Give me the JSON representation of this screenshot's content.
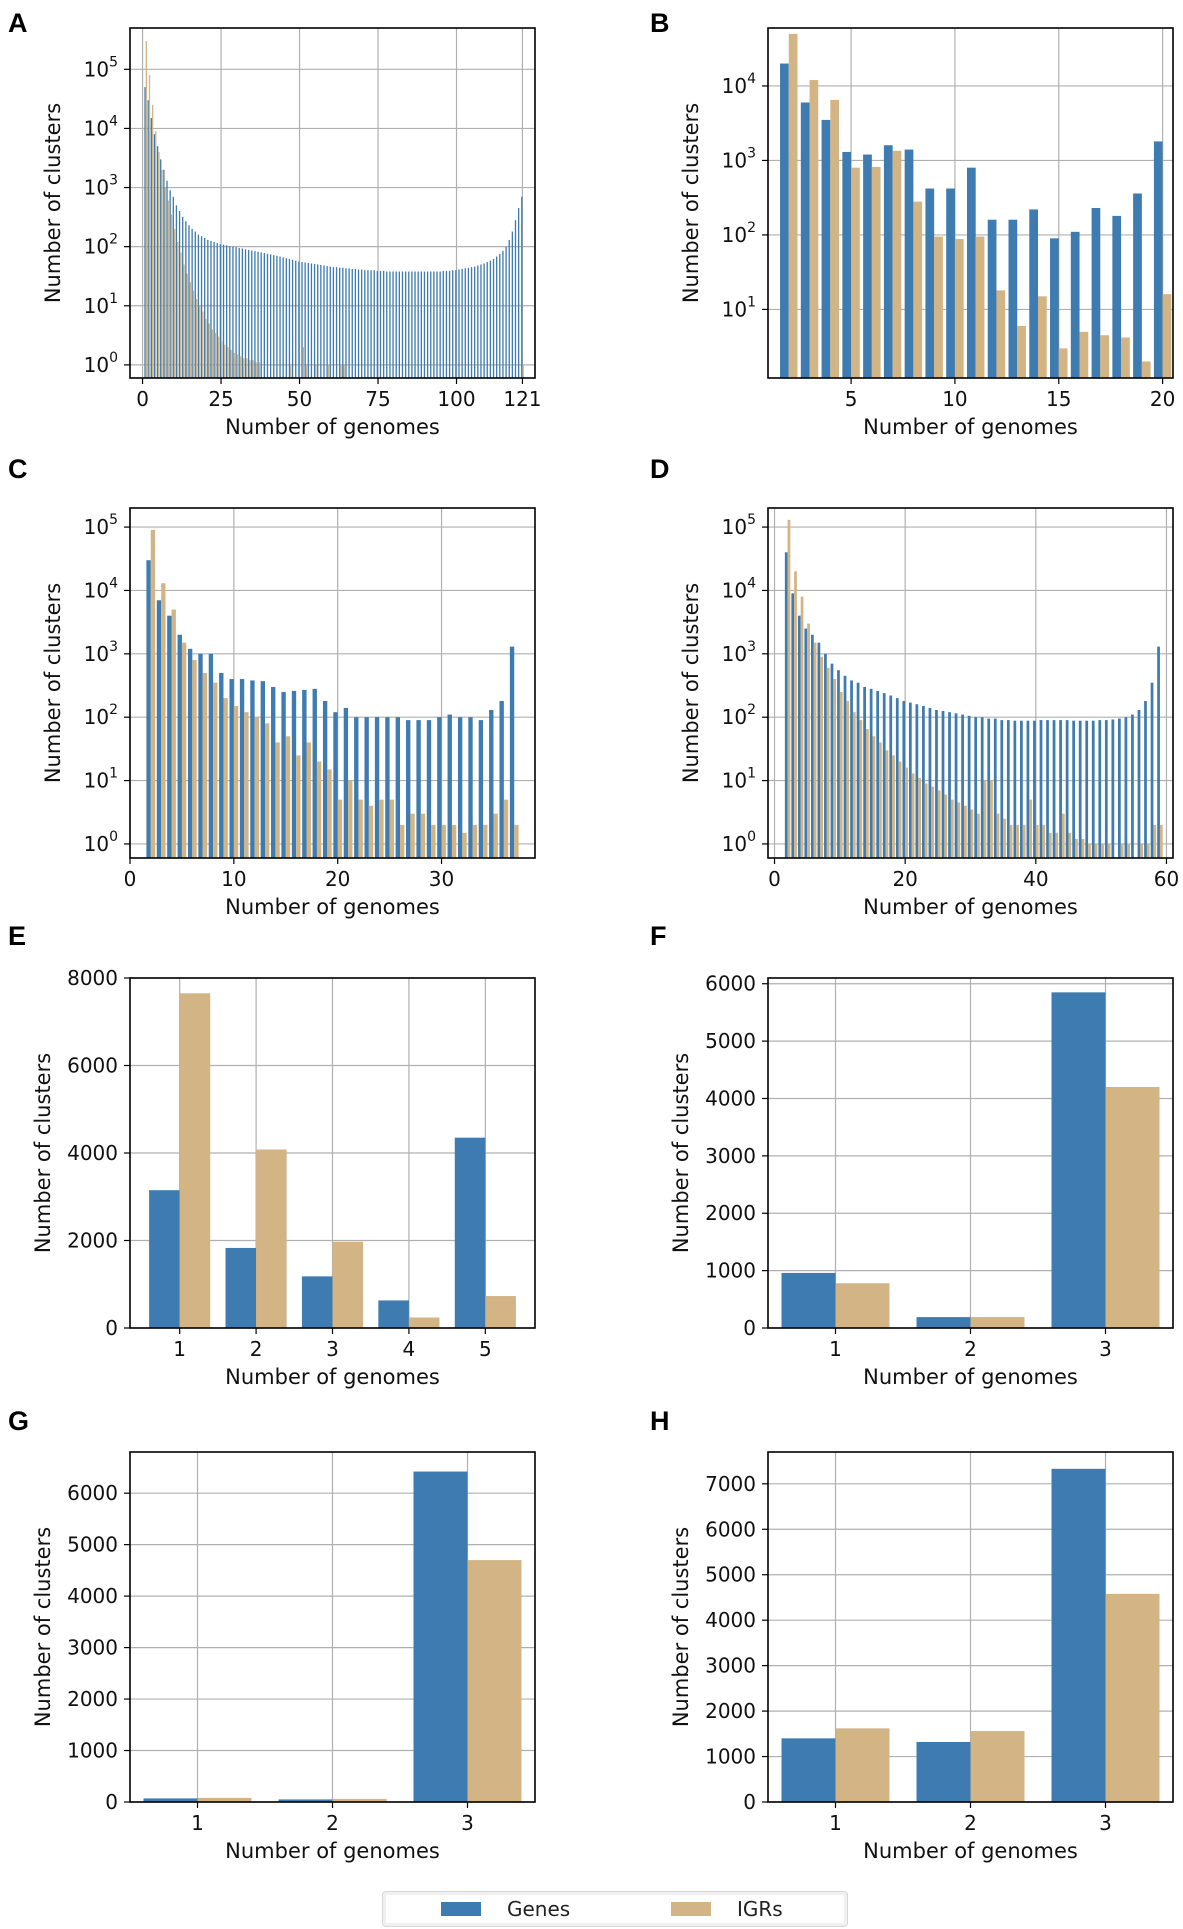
{
  "colors": {
    "genes": "#3e7bb0",
    "igrs": "#d2b485",
    "grid": "#b0b0b0",
    "axis": "#000000"
  },
  "legend": {
    "genes_label": "Genes",
    "igrs_label": "IGRs"
  },
  "chart_data": [
    {
      "panel": "A",
      "type": "bar",
      "scale": "log",
      "xlabel": "Number of genomes",
      "ylabel": "Number of clusters",
      "xlim": [
        -4,
        125
      ],
      "ylim": [
        0.6,
        500000
      ],
      "xticks": [
        0,
        25,
        50,
        75,
        100,
        121
      ],
      "xtick_labels": [
        "0",
        "25",
        "50",
        "75",
        "100",
        "121"
      ],
      "ytick_exps": [
        0,
        1,
        2,
        3,
        4,
        5
      ],
      "x": [
        1,
        2,
        3,
        4,
        5,
        6,
        7,
        8,
        9,
        10,
        11,
        12,
        13,
        14,
        15,
        16,
        17,
        18,
        19,
        20,
        21,
        22,
        23,
        24,
        25,
        26,
        27,
        28,
        29,
        30,
        31,
        32,
        33,
        34,
        35,
        36,
        37,
        38,
        39,
        40,
        41,
        42,
        43,
        44,
        45,
        46,
        47,
        48,
        49,
        50,
        51,
        52,
        53,
        54,
        55,
        56,
        57,
        58,
        59,
        60,
        61,
        62,
        63,
        64,
        65,
        66,
        67,
        68,
        69,
        70,
        71,
        72,
        73,
        74,
        75,
        76,
        77,
        78,
        79,
        80,
        81,
        82,
        83,
        84,
        85,
        86,
        87,
        88,
        89,
        90,
        91,
        92,
        93,
        94,
        95,
        96,
        97,
        98,
        99,
        100,
        101,
        102,
        103,
        104,
        105,
        106,
        107,
        108,
        109,
        110,
        111,
        112,
        113,
        114,
        115,
        116,
        117,
        118,
        119,
        120,
        121
      ],
      "series": [
        {
          "name": "Genes",
          "values": [
            50000,
            30000,
            15000,
            8000,
            5000,
            3000,
            2000,
            1300,
            900,
            700,
            500,
            400,
            320,
            270,
            230,
            200,
            180,
            160,
            150,
            140,
            130,
            125,
            120,
            115,
            110,
            108,
            105,
            102,
            100,
            98,
            95,
            93,
            90,
            88,
            86,
            84,
            82,
            80,
            78,
            76,
            74,
            72,
            70,
            68,
            66,
            64,
            62,
            60,
            58,
            56,
            55,
            54,
            53,
            52,
            51,
            50,
            49,
            48,
            47,
            46,
            45,
            45,
            44,
            44,
            43,
            43,
            42,
            42,
            41,
            41,
            40,
            40,
            40,
            40,
            39,
            39,
            39,
            38,
            38,
            38,
            38,
            38,
            38,
            38,
            38,
            38,
            38,
            38,
            38,
            38,
            38,
            38,
            38,
            38,
            38,
            39,
            39,
            39,
            40,
            40,
            41,
            42,
            43,
            44,
            45,
            46,
            48,
            50,
            52,
            55,
            58,
            62,
            68,
            75,
            85,
            100,
            130,
            180,
            280,
            450,
            700
          ]
        },
        {
          "name": "IGRs",
          "values": [
            300000,
            80000,
            25000,
            9000,
            4000,
            2000,
            1000,
            600,
            350,
            200,
            120,
            80,
            50,
            35,
            25,
            18,
            13,
            10,
            8,
            6,
            5,
            4,
            3.5,
            3,
            2.5,
            2.2,
            2,
            1.8,
            1.6,
            1.5,
            1.4,
            1.3,
            1.3,
            1.2,
            1.2,
            1.1,
            1.1,
            0,
            0,
            0,
            0,
            0,
            0,
            0,
            0,
            0,
            1,
            0,
            0,
            0,
            2,
            1,
            0,
            0,
            1,
            0,
            0,
            0,
            1,
            0,
            0,
            0,
            1,
            1,
            0,
            0,
            0,
            0,
            0,
            0,
            0,
            0,
            0,
            0,
            0,
            0,
            0,
            0,
            0,
            0,
            0,
            0,
            0,
            0,
            0,
            0,
            0,
            0,
            0,
            0,
            0,
            0,
            0,
            0,
            0,
            0,
            0,
            0,
            0,
            0,
            0,
            0,
            0,
            0,
            0,
            0,
            0,
            0,
            0,
            0,
            0,
            0,
            0,
            0,
            0,
            0,
            0,
            0,
            0,
            0,
            1
          ]
        }
      ]
    },
    {
      "panel": "B",
      "type": "bar",
      "scale": "log",
      "xlabel": "Number of genomes",
      "ylabel": "Number of clusters",
      "xlim": [
        1,
        20.5
      ],
      "ylim": [
        1.2,
        60000
      ],
      "xticks": [
        5,
        10,
        15,
        20
      ],
      "xtick_labels": [
        "5",
        "10",
        "15",
        "20"
      ],
      "ytick_exps": [
        1,
        2,
        3,
        4
      ],
      "x": [
        2,
        3,
        4,
        5,
        6,
        7,
        8,
        9,
        10,
        11,
        12,
        13,
        14,
        15,
        16,
        17,
        18,
        19,
        20
      ],
      "series": [
        {
          "name": "Genes",
          "values": [
            20000,
            6000,
            3500,
            1300,
            1200,
            1600,
            1400,
            420,
            420,
            800,
            160,
            160,
            220,
            90,
            110,
            230,
            180,
            360,
            1800
          ]
        },
        {
          "name": "IGRs",
          "values": [
            50000,
            12000,
            6500,
            800,
            820,
            1350,
            280,
            95,
            88,
            95,
            18,
            6,
            15,
            3,
            5,
            4.5,
            4.2,
            2,
            16
          ]
        }
      ]
    },
    {
      "panel": "C",
      "type": "bar",
      "scale": "log",
      "xlabel": "Number of genomes",
      "ylabel": "Number of clusters",
      "xlim": [
        0,
        39
      ],
      "ylim": [
        0.6,
        200000
      ],
      "xticks": [
        0,
        10,
        20,
        30
      ],
      "xtick_labels": [
        "0",
        "10",
        "20",
        "30"
      ],
      "ytick_exps": [
        0,
        1,
        2,
        3,
        4,
        5
      ],
      "x": [
        2,
        3,
        4,
        5,
        6,
        7,
        8,
        9,
        10,
        11,
        12,
        13,
        14,
        15,
        16,
        17,
        18,
        19,
        20,
        21,
        22,
        23,
        24,
        25,
        26,
        27,
        28,
        29,
        30,
        31,
        32,
        33,
        34,
        35,
        36,
        37
      ],
      "series": [
        {
          "name": "Genes",
          "values": [
            30000,
            7000,
            4000,
            2000,
            1200,
            1000,
            1000,
            500,
            400,
            400,
            380,
            370,
            300,
            250,
            260,
            270,
            280,
            180,
            120,
            140,
            100,
            100,
            100,
            100,
            100,
            90,
            90,
            90,
            100,
            110,
            100,
            100,
            90,
            130,
            180,
            1300
          ]
        },
        {
          "name": "IGRs",
          "values": [
            90000,
            13000,
            5000,
            1500,
            800,
            500,
            350,
            200,
            150,
            120,
            100,
            80,
            40,
            50,
            25,
            40,
            20,
            15,
            5,
            10,
            5,
            4,
            5,
            5,
            2,
            3,
            3,
            2,
            2,
            2,
            1.5,
            2,
            2,
            3,
            5,
            2
          ]
        }
      ]
    },
    {
      "panel": "D",
      "type": "bar",
      "scale": "log",
      "xlabel": "Number of genomes",
      "ylabel": "Number of clusters",
      "xlim": [
        -1,
        61
      ],
      "ylim": [
        0.6,
        200000
      ],
      "xticks": [
        0,
        20,
        40,
        60
      ],
      "xtick_labels": [
        "0",
        "20",
        "40",
        "60"
      ],
      "ytick_exps": [
        0,
        1,
        2,
        3,
        4,
        5
      ],
      "x": [
        2,
        3,
        4,
        5,
        6,
        7,
        8,
        9,
        10,
        11,
        12,
        13,
        14,
        15,
        16,
        17,
        18,
        19,
        20,
        21,
        22,
        23,
        24,
        25,
        26,
        27,
        28,
        29,
        30,
        31,
        32,
        33,
        34,
        35,
        36,
        37,
        38,
        39,
        40,
        41,
        42,
        43,
        44,
        45,
        46,
        47,
        48,
        49,
        50,
        51,
        52,
        53,
        54,
        55,
        56,
        57,
        58,
        59
      ],
      "series": [
        {
          "name": "Genes",
          "values": [
            40000,
            9000,
            4000,
            2500,
            2000,
            1500,
            1000,
            700,
            550,
            450,
            380,
            350,
            300,
            280,
            260,
            240,
            220,
            200,
            180,
            170,
            160,
            150,
            140,
            130,
            125,
            120,
            115,
            110,
            105,
            100,
            100,
            95,
            95,
            90,
            90,
            88,
            88,
            88,
            88,
            90,
            90,
            90,
            90,
            90,
            88,
            88,
            88,
            88,
            90,
            90,
            92,
            95,
            100,
            110,
            130,
            180,
            350,
            1300
          ]
        },
        {
          "name": "IGRs",
          "values": [
            130000,
            20000,
            8000,
            3000,
            1500,
            900,
            600,
            400,
            250,
            180,
            120,
            90,
            65,
            50,
            40,
            30,
            25,
            20,
            16,
            13,
            11,
            9,
            8,
            7,
            6,
            5,
            4.5,
            4,
            3.5,
            3,
            10,
            10,
            3,
            2.5,
            2,
            2,
            2,
            5,
            2,
            2,
            1.5,
            1.5,
            3,
            1.5,
            1.2,
            1.2,
            1,
            1,
            1,
            1,
            0,
            1,
            1,
            0,
            1,
            1,
            2,
            2
          ]
        }
      ]
    },
    {
      "panel": "E",
      "type": "bar",
      "scale": "linear",
      "xlabel": "Number of genomes",
      "ylabel": "Number of clusters",
      "xlim": [
        0.35,
        5.65
      ],
      "ylim": [
        0,
        8000
      ],
      "categories": [
        "1",
        "2",
        "3",
        "4",
        "5"
      ],
      "yticks": [
        0,
        2000,
        4000,
        6000,
        8000
      ],
      "ytick_labels": [
        "0",
        "2000",
        "4000",
        "6000",
        "8000"
      ],
      "series": [
        {
          "name": "Genes",
          "values": [
            3150,
            1830,
            1180,
            630,
            4350
          ]
        },
        {
          "name": "IGRs",
          "values": [
            7650,
            4080,
            1970,
            240,
            730
          ]
        }
      ]
    },
    {
      "panel": "F",
      "type": "bar",
      "scale": "linear",
      "xlabel": "Number of genomes",
      "ylabel": "Number of clusters",
      "xlim": [
        0.5,
        3.5
      ],
      "ylim": [
        0,
        6100
      ],
      "categories": [
        "1",
        "2",
        "3"
      ],
      "yticks": [
        0,
        1000,
        2000,
        3000,
        4000,
        5000,
        6000
      ],
      "ytick_labels": [
        "0",
        "1000",
        "2000",
        "3000",
        "4000",
        "5000",
        "6000"
      ],
      "series": [
        {
          "name": "Genes",
          "values": [
            960,
            190,
            5850
          ]
        },
        {
          "name": "IGRs",
          "values": [
            780,
            190,
            4200
          ]
        }
      ]
    },
    {
      "panel": "G",
      "type": "bar",
      "scale": "linear",
      "xlabel": "Number of genomes",
      "ylabel": "Number of clusters",
      "xlim": [
        0.5,
        3.5
      ],
      "ylim": [
        0,
        6800
      ],
      "categories": [
        "1",
        "2",
        "3"
      ],
      "yticks": [
        0,
        1000,
        2000,
        3000,
        4000,
        5000,
        6000
      ],
      "ytick_labels": [
        "0",
        "1000",
        "2000",
        "3000",
        "4000",
        "5000",
        "6000"
      ],
      "series": [
        {
          "name": "Genes",
          "values": [
            70,
            50,
            6420
          ]
        },
        {
          "name": "IGRs",
          "values": [
            80,
            60,
            4700
          ]
        }
      ]
    },
    {
      "panel": "H",
      "type": "bar",
      "scale": "linear",
      "xlabel": "Number of genomes",
      "ylabel": "Number of clusters",
      "xlim": [
        0.5,
        3.5
      ],
      "ylim": [
        0,
        7700
      ],
      "categories": [
        "1",
        "2",
        "3"
      ],
      "yticks": [
        0,
        1000,
        2000,
        3000,
        4000,
        5000,
        6000,
        7000
      ],
      "ytick_labels": [
        "0",
        "1000",
        "2000",
        "3000",
        "4000",
        "5000",
        "6000",
        "7000"
      ],
      "series": [
        {
          "name": "Genes",
          "values": [
            1400,
            1320,
            7330
          ]
        },
        {
          "name": "IGRs",
          "values": [
            1620,
            1560,
            4580
          ]
        }
      ]
    }
  ]
}
